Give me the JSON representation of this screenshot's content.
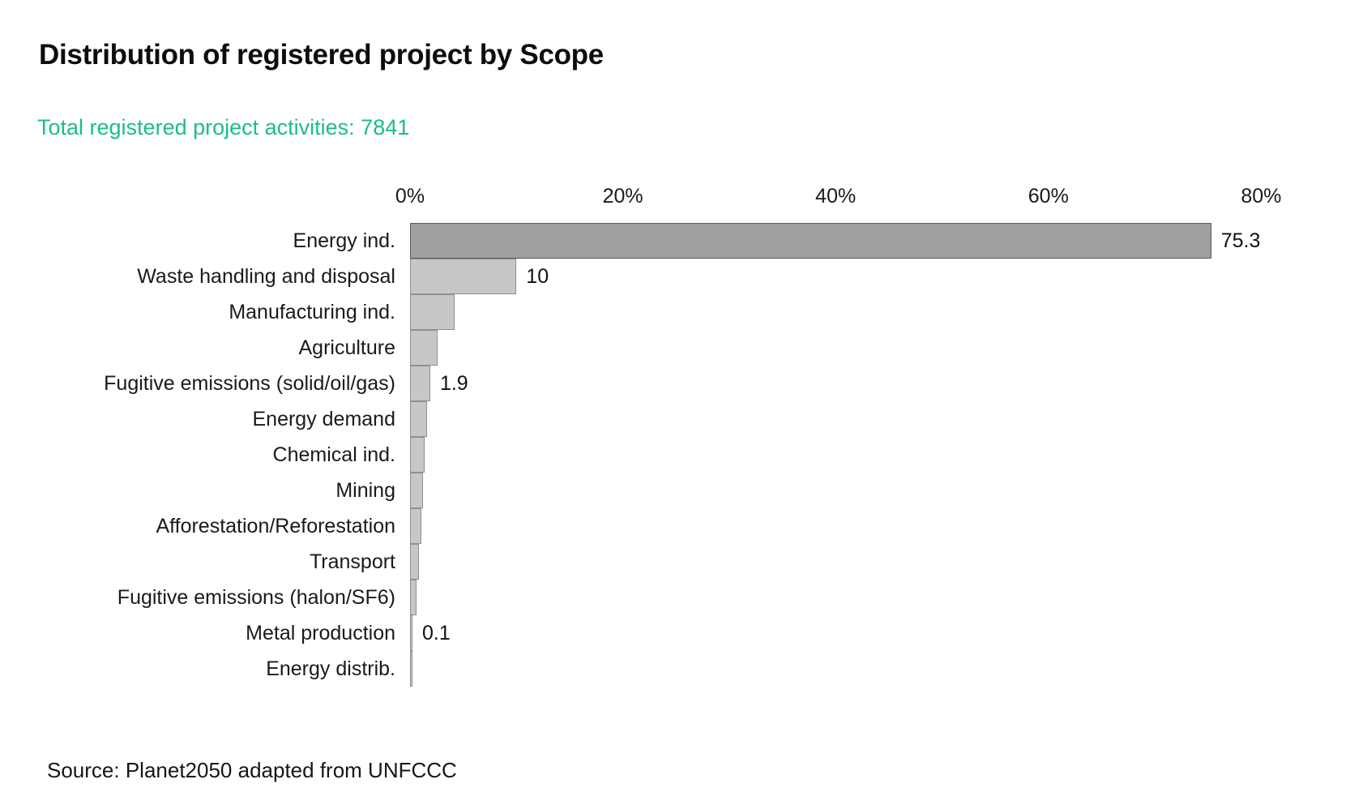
{
  "header": {
    "title": "Distribution of registered project by Scope",
    "subtitle": "Total registered project activities: 7841"
  },
  "chart_data": {
    "type": "bar",
    "orientation": "horizontal",
    "title": "Distribution of registered project by Scope",
    "subtitle": "Total registered project activities: 7841",
    "total_registered_activities": 7841,
    "categories": [
      "Energy ind.",
      "Waste handling and disposal",
      "Manufacturing ind.",
      "Agriculture",
      "Fugitive emissions (solid/oil/gas)",
      "Energy demand",
      "Chemical ind.",
      "Mining",
      "Afforestation/Reforestation",
      "Transport",
      "Fugitive emissions (halon/SF6)",
      "Metal production",
      "Energy distrib."
    ],
    "values": [
      75.3,
      10,
      4.2,
      2.6,
      1.9,
      1.6,
      1.4,
      1.2,
      1.1,
      0.8,
      0.6,
      0.1,
      0.1
    ],
    "value_labels": [
      "75.3",
      "10",
      "",
      "",
      "1.9",
      "",
      "",
      "",
      "",
      "",
      "",
      "0.1",
      ""
    ],
    "unit": "%",
    "x_tick_labels": [
      "0%",
      "20%",
      "40%",
      "60%",
      "80%"
    ],
    "xlim": [
      0,
      80
    ],
    "grid": false,
    "legend": false,
    "highlighted_category": "Energy ind.",
    "colors": {
      "bar_highlight_fill": "#9f9f9f",
      "bar_highlight_border": "#5c5c5c",
      "bar_fill": "#c7c7c7",
      "bar_border": "#8f8f8f"
    }
  },
  "footer": {
    "source": "Source: Planet2050 adapted from UNFCCC"
  },
  "colors": {
    "background": "#ffffff",
    "title_text": "#0d0d0d",
    "accent_green": "#1abd8c",
    "body_text": "#1a1a1a"
  }
}
